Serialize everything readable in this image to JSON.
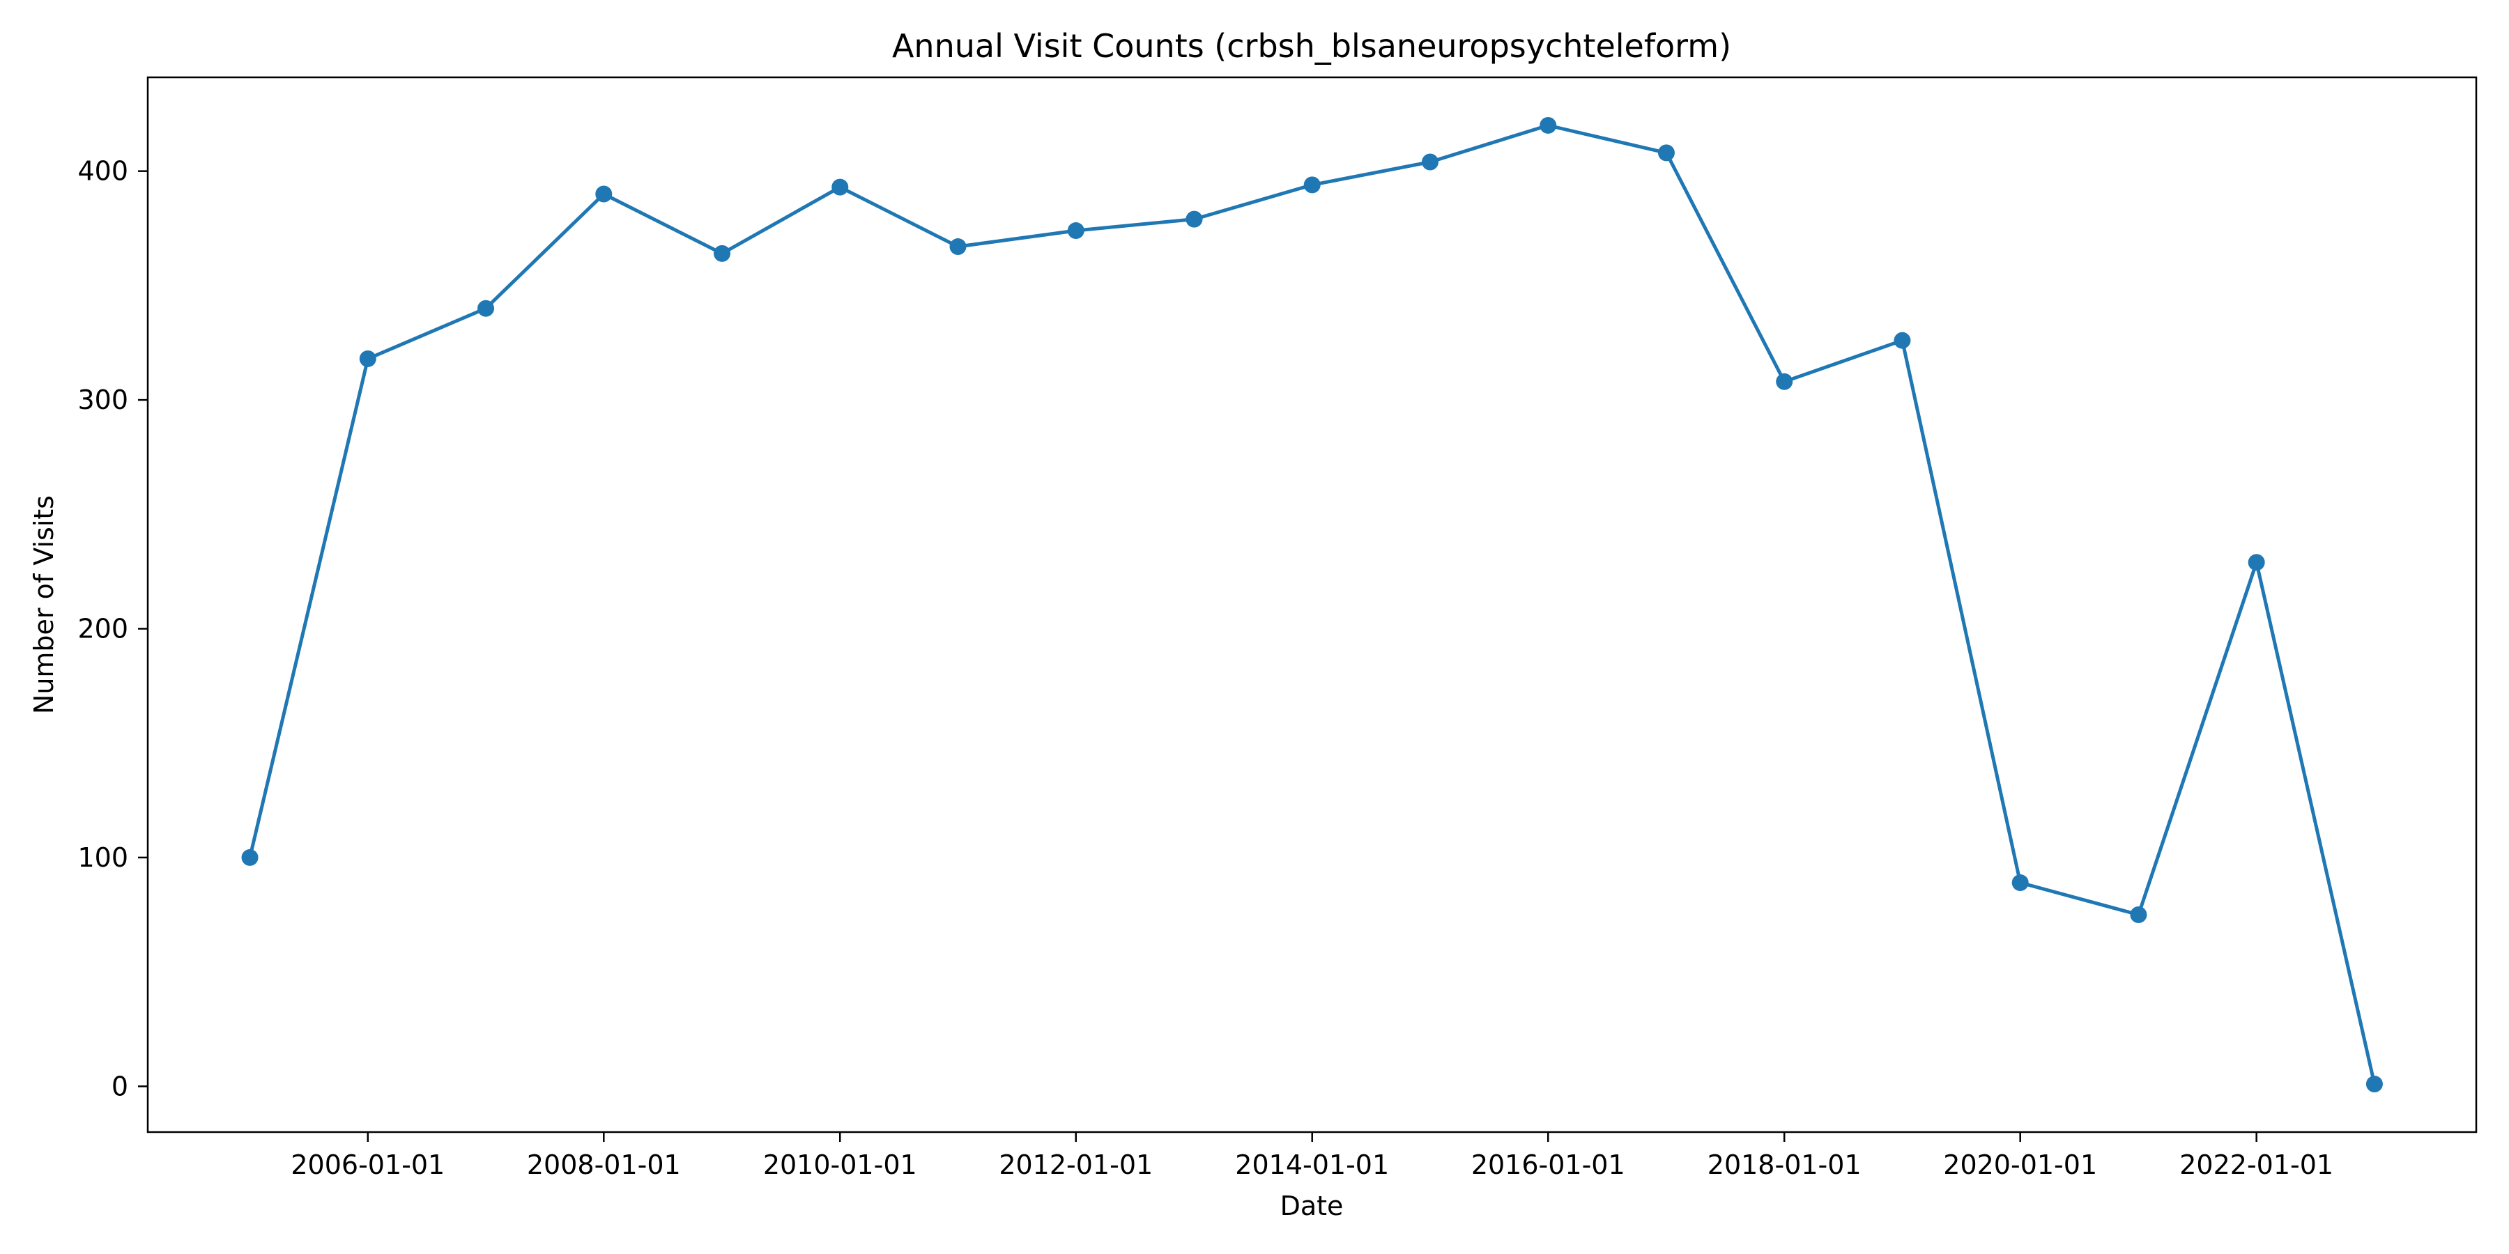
{
  "chart_data": {
    "type": "line",
    "title": "Annual Visit Counts (crbsh_blsaneuropsychteleform)",
    "xlabel": "Date",
    "ylabel": "Number of Visits",
    "grid": false,
    "legend": null,
    "x_ticks": [
      "2006-01-01",
      "2008-01-01",
      "2010-01-01",
      "2012-01-01",
      "2014-01-01",
      "2016-01-01",
      "2018-01-01",
      "2020-01-01",
      "2022-01-01"
    ],
    "y_ticks": [
      0,
      100,
      200,
      300,
      400
    ],
    "xlim": [
      "2004-02-20",
      "2023-11-12"
    ],
    "ylim": [
      -20,
      441
    ],
    "series": [
      {
        "color": "#1f77b4",
        "x": [
          "2005-01-01",
          "2006-01-01",
          "2007-01-01",
          "2008-01-01",
          "2009-01-01",
          "2010-01-01",
          "2011-01-01",
          "2012-01-01",
          "2013-01-01",
          "2014-01-01",
          "2015-01-01",
          "2016-01-01",
          "2017-01-01",
          "2018-01-01",
          "2019-01-01",
          "2020-01-01",
          "2021-01-01",
          "2022-01-01",
          "2023-01-01"
        ],
        "values": [
          100,
          318,
          340,
          390,
          364,
          393,
          367,
          374,
          379,
          394,
          404,
          420,
          408,
          308,
          326,
          89,
          75,
          229,
          1
        ]
      }
    ]
  }
}
